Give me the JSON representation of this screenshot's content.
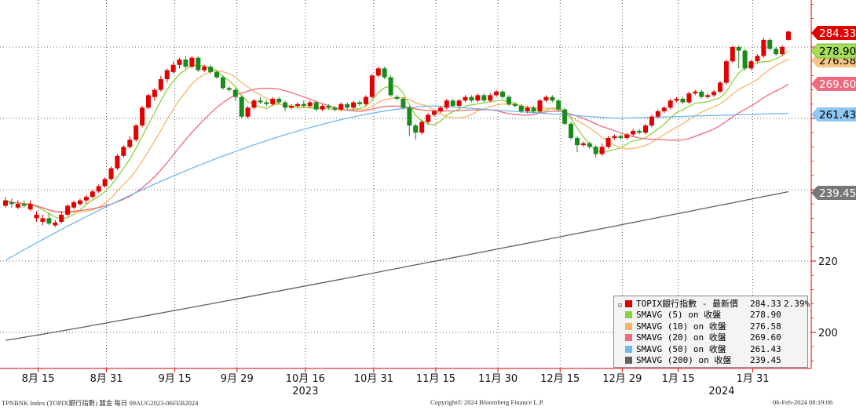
{
  "footer": {
    "left": "TPNBNK Index (TOPIX銀行指數) 蠶金  每日 09AUG2023-06FEB2024",
    "center": "Copyright© 2024 Bloomberg Finance L.P.",
    "right": "06-Feb-2024 08:19:06"
  },
  "legend": {
    "items": [
      {
        "label": "TOPIX銀行指數 - 最新價",
        "value": "284.33",
        "pct": "2.39%",
        "color": "#e00000"
      },
      {
        "label": "SMAVG (5)  on 收盤",
        "value": "278.90",
        "color": "#8fd13c"
      },
      {
        "label": "SMAVG (10)  on 收盤",
        "value": "276.58",
        "color": "#f5b66c"
      },
      {
        "label": "SMAVG (20)  on 收盤",
        "value": "269.60",
        "color": "#ef6b7c"
      },
      {
        "label": "SMAVG (50)  on 收盤",
        "value": "261.43",
        "color": "#72b8ee"
      },
      {
        "label": "SMAVG (200) on 收盤",
        "value": "239.45",
        "color": "#606060"
      }
    ]
  },
  "chart_data": {
    "type": "candlestick",
    "yaxis": {
      "ticks": [
        200,
        220,
        240,
        260,
        280
      ],
      "tick_labels_shown": [
        "200",
        "220"
      ],
      "ylim": [
        190,
        293
      ]
    },
    "xaxis": {
      "tick_labels": [
        "8月 15",
        "8月 31",
        "9月 15",
        "9月 29",
        "10月 16",
        "10月 31",
        "11月 15",
        "11月 30",
        "12月 15",
        "12月 29",
        "1月 15",
        "1月 31"
      ],
      "tick_index": [
        5,
        16,
        27,
        37,
        48,
        59,
        69,
        79,
        89,
        99,
        108,
        120
      ],
      "year_labels": [
        {
          "text": "2023",
          "at_index": 48
        },
        {
          "text": "2024",
          "at_index": 115
        }
      ]
    },
    "last_value_labels": [
      {
        "value": "284.33",
        "color": "#e00000"
      },
      {
        "value": "278.90",
        "color": "#8fd13c"
      },
      {
        "value": "276.58",
        "color": "#f5b66c"
      },
      {
        "value": "269.60",
        "color": "#ef6b7c"
      },
      {
        "value": "261.43",
        "color": "#72b8ee"
      },
      {
        "value": "239.45",
        "color": "#606060"
      }
    ],
    "candles": [
      [
        235.5,
        237,
        238,
        235
      ],
      [
        236.5,
        236,
        237.5,
        235
      ],
      [
        235,
        236,
        237,
        234.5
      ],
      [
        236,
        235.5,
        237,
        235
      ],
      [
        234.5,
        236,
        237,
        234
      ],
      [
        232,
        233,
        234,
        231
      ],
      [
        231,
        232,
        233,
        230
      ],
      [
        232,
        230.5,
        233.5,
        230
      ],
      [
        230,
        230.8,
        231.5,
        229.5
      ],
      [
        231,
        233,
        234,
        230.5
      ],
      [
        233,
        235.5,
        236,
        232.5
      ],
      [
        235,
        236.5,
        237,
        234.5
      ],
      [
        236,
        237,
        237.5,
        235.5
      ],
      [
        237,
        238,
        238.5,
        236
      ],
      [
        238,
        239.5,
        240,
        237.5
      ],
      [
        239.5,
        241,
        241.5,
        239
      ],
      [
        241,
        243,
        243.5,
        240.5
      ],
      [
        243,
        246,
        246.5,
        242.5
      ],
      [
        246,
        249.5,
        250,
        245.5
      ],
      [
        249.5,
        252,
        252.5,
        249
      ],
      [
        252,
        254,
        255,
        251.5
      ],
      [
        254,
        258,
        258.5,
        253.5
      ],
      [
        258,
        263,
        263.5,
        257.5
      ],
      [
        263,
        266.5,
        267,
        262.5
      ],
      [
        266,
        268,
        268.5,
        265
      ],
      [
        268,
        271,
        272,
        267.5
      ],
      [
        271,
        273.5,
        274,
        270
      ],
      [
        273,
        275,
        276,
        272.5
      ],
      [
        275,
        276.5,
        277,
        274
      ],
      [
        276.5,
        274.5,
        277.5,
        274
      ],
      [
        274.5,
        277,
        277.5,
        274
      ],
      [
        277,
        273.5,
        277.5,
        273
      ],
      [
        273.5,
        274.5,
        275,
        273
      ],
      [
        274.5,
        273,
        275,
        272.5
      ],
      [
        273,
        271.5,
        273.5,
        271
      ],
      [
        271.5,
        268.5,
        272,
        268
      ],
      [
        268.5,
        268,
        269,
        267.5
      ],
      [
        268,
        266,
        268.5,
        265
      ],
      [
        266,
        260.5,
        266.5,
        260
      ],
      [
        260.5,
        263,
        263.5,
        260
      ],
      [
        263,
        265,
        265.5,
        262.5
      ],
      [
        265,
        264.5,
        266,
        264
      ],
      [
        264.5,
        264,
        265,
        263.5
      ],
      [
        264,
        265.5,
        266,
        263.5
      ],
      [
        265.5,
        264.5,
        266,
        264
      ],
      [
        264.5,
        263,
        265,
        262
      ],
      [
        263,
        263.5,
        264,
        262.5
      ],
      [
        263.5,
        264,
        264.5,
        263
      ],
      [
        264,
        263.5,
        265,
        263
      ],
      [
        263.5,
        264.5,
        265,
        263
      ],
      [
        264.5,
        262.5,
        265,
        262
      ],
      [
        262.5,
        263.5,
        264,
        262
      ],
      [
        263.5,
        263,
        264,
        262.5
      ],
      [
        263,
        262.5,
        263.5,
        262
      ],
      [
        262.5,
        264,
        264.5,
        262
      ],
      [
        264,
        263,
        264.5,
        262.5
      ],
      [
        263,
        264.5,
        265,
        262.5
      ],
      [
        264.5,
        264,
        265,
        263.5
      ],
      [
        264,
        266,
        266.5,
        263.5
      ],
      [
        266,
        272,
        272.5,
        265.5
      ],
      [
        272,
        274,
        274.5,
        271.5
      ],
      [
        274,
        271.5,
        274.5,
        271
      ],
      [
        271.5,
        266.5,
        272,
        266
      ],
      [
        266,
        265.5,
        266.5,
        265
      ],
      [
        265.5,
        263,
        266,
        262.5
      ],
      [
        263,
        258,
        263.5,
        255
      ],
      [
        258,
        256,
        258.5,
        254
      ],
      [
        256,
        259,
        259.5,
        255.5
      ],
      [
        259,
        261,
        261.5,
        258.5
      ],
      [
        261,
        262,
        262.5,
        260.5
      ],
      [
        262,
        263,
        263.5,
        261.5
      ],
      [
        263,
        265,
        265.5,
        262.5
      ],
      [
        265,
        263.5,
        265.5,
        263
      ],
      [
        263.5,
        265,
        265.5,
        263
      ],
      [
        265,
        266,
        266.5,
        264.5
      ],
      [
        266,
        265,
        266.5,
        264.5
      ],
      [
        265,
        266.5,
        267,
        264.5
      ],
      [
        266.5,
        265,
        267,
        264.5
      ],
      [
        265,
        266.5,
        267,
        264.5
      ],
      [
        266.5,
        267.5,
        268,
        266
      ],
      [
        267.5,
        266,
        268,
        265.5
      ],
      [
        266,
        264,
        266.5,
        263.5
      ],
      [
        264,
        263.5,
        264.5,
        263
      ],
      [
        263.5,
        262,
        264,
        261.5
      ],
      [
        262,
        263,
        263.5,
        261.5
      ],
      [
        263,
        262,
        263.5,
        261.5
      ],
      [
        262,
        265,
        265.5,
        261.5
      ],
      [
        265,
        266,
        266.5,
        264.5
      ],
      [
        266,
        265,
        266.5,
        264.5
      ],
      [
        265,
        262.5,
        265.5,
        262
      ],
      [
        262.5,
        258.5,
        263,
        258
      ],
      [
        258.5,
        254.5,
        259,
        254
      ],
      [
        254.5,
        252.5,
        255,
        250.5
      ],
      [
        252.5,
        253,
        253.5,
        252
      ],
      [
        253,
        252,
        253.5,
        251.5
      ],
      [
        252,
        250,
        252.5,
        249
      ],
      [
        250,
        252,
        253,
        249.5
      ],
      [
        252,
        254.5,
        255,
        251.5
      ],
      [
        254.5,
        255,
        255.5,
        254
      ],
      [
        255,
        254.5,
        255.5,
        254
      ],
      [
        254.5,
        255.5,
        256,
        254
      ],
      [
        255.5,
        256.5,
        257,
        255
      ],
      [
        256.5,
        256,
        257,
        255.5
      ],
      [
        256,
        258,
        258.5,
        255.5
      ],
      [
        258,
        260.5,
        261,
        257.5
      ],
      [
        260.5,
        262,
        262.5,
        260
      ],
      [
        262,
        263,
        263.5,
        261.5
      ],
      [
        263,
        265,
        265.5,
        262.5
      ],
      [
        265,
        265.5,
        266,
        264.5
      ],
      [
        265.5,
        264.5,
        266,
        264
      ],
      [
        264.5,
        267,
        267.5,
        264
      ],
      [
        267,
        267.5,
        268,
        266.5
      ],
      [
        267.5,
        266,
        268,
        265.5
      ],
      [
        266,
        266.5,
        267,
        265.5
      ],
      [
        266.5,
        267.5,
        268,
        266
      ],
      [
        267.5,
        270,
        270.5,
        267
      ],
      [
        270,
        276,
        276.5,
        269.5
      ],
      [
        276,
        280,
        280.5,
        275.5
      ],
      [
        280,
        279,
        280.5,
        274
      ],
      [
        279,
        274,
        279.5,
        273.5
      ],
      [
        274,
        276,
        276.5,
        273.5
      ],
      [
        276,
        277.5,
        278,
        275.5
      ],
      [
        277.5,
        282,
        282.5,
        277
      ],
      [
        282,
        279.5,
        282.5,
        279
      ],
      [
        279.5,
        278,
        280,
        277.5
      ],
      [
        278,
        280,
        280.5,
        277.5
      ],
      [
        282,
        284.33,
        284.6,
        281.8
      ]
    ]
  }
}
